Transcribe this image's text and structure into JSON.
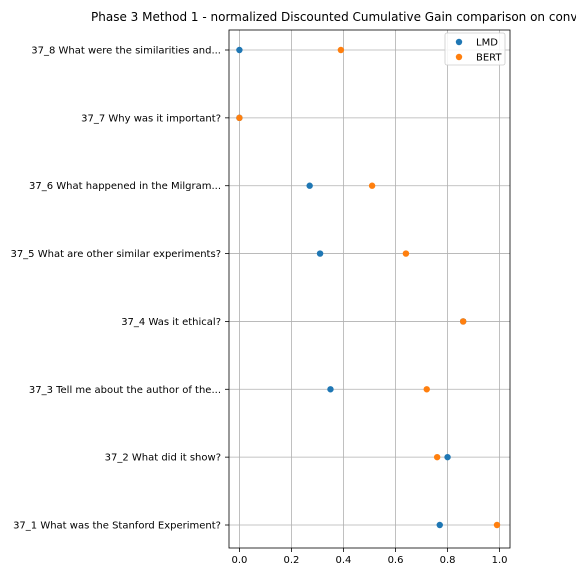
{
  "chart_data": {
    "type": "scatter",
    "title": "Phase 3 Method 1 - normalized Discounted Cumulative Gain comparison on conv",
    "xlabel": "",
    "ylabel": "",
    "xlim": [
      -0.04,
      1.04
    ],
    "xticks": [
      0.0,
      0.2,
      0.4,
      0.6,
      0.8,
      1.0
    ],
    "xtick_labels": [
      "0.0",
      "0.2",
      "0.4",
      "0.6",
      "0.8",
      "1.0"
    ],
    "categories": [
      "37_1 What was the Stanford Experiment?",
      "37_2 What did it show?",
      "37_3 Tell me about the author of the...",
      "37_4 Was it ethical?",
      "37_5 What are other similar experiments?",
      "37_6 What happened in the Milgram...",
      "37_7 Why was it important?",
      "37_8 What were the similarities and..."
    ],
    "series": [
      {
        "name": "LMD",
        "color": "#1f77b4",
        "values": [
          0.77,
          0.8,
          0.35,
          0.86,
          0.31,
          0.27,
          0.0,
          0.0
        ]
      },
      {
        "name": "BERT",
        "color": "#ff7f0e",
        "values": [
          0.99,
          0.76,
          0.72,
          0.86,
          0.64,
          0.51,
          0.0,
          0.39
        ]
      }
    ],
    "grid": true,
    "legend_position": "top-right"
  }
}
